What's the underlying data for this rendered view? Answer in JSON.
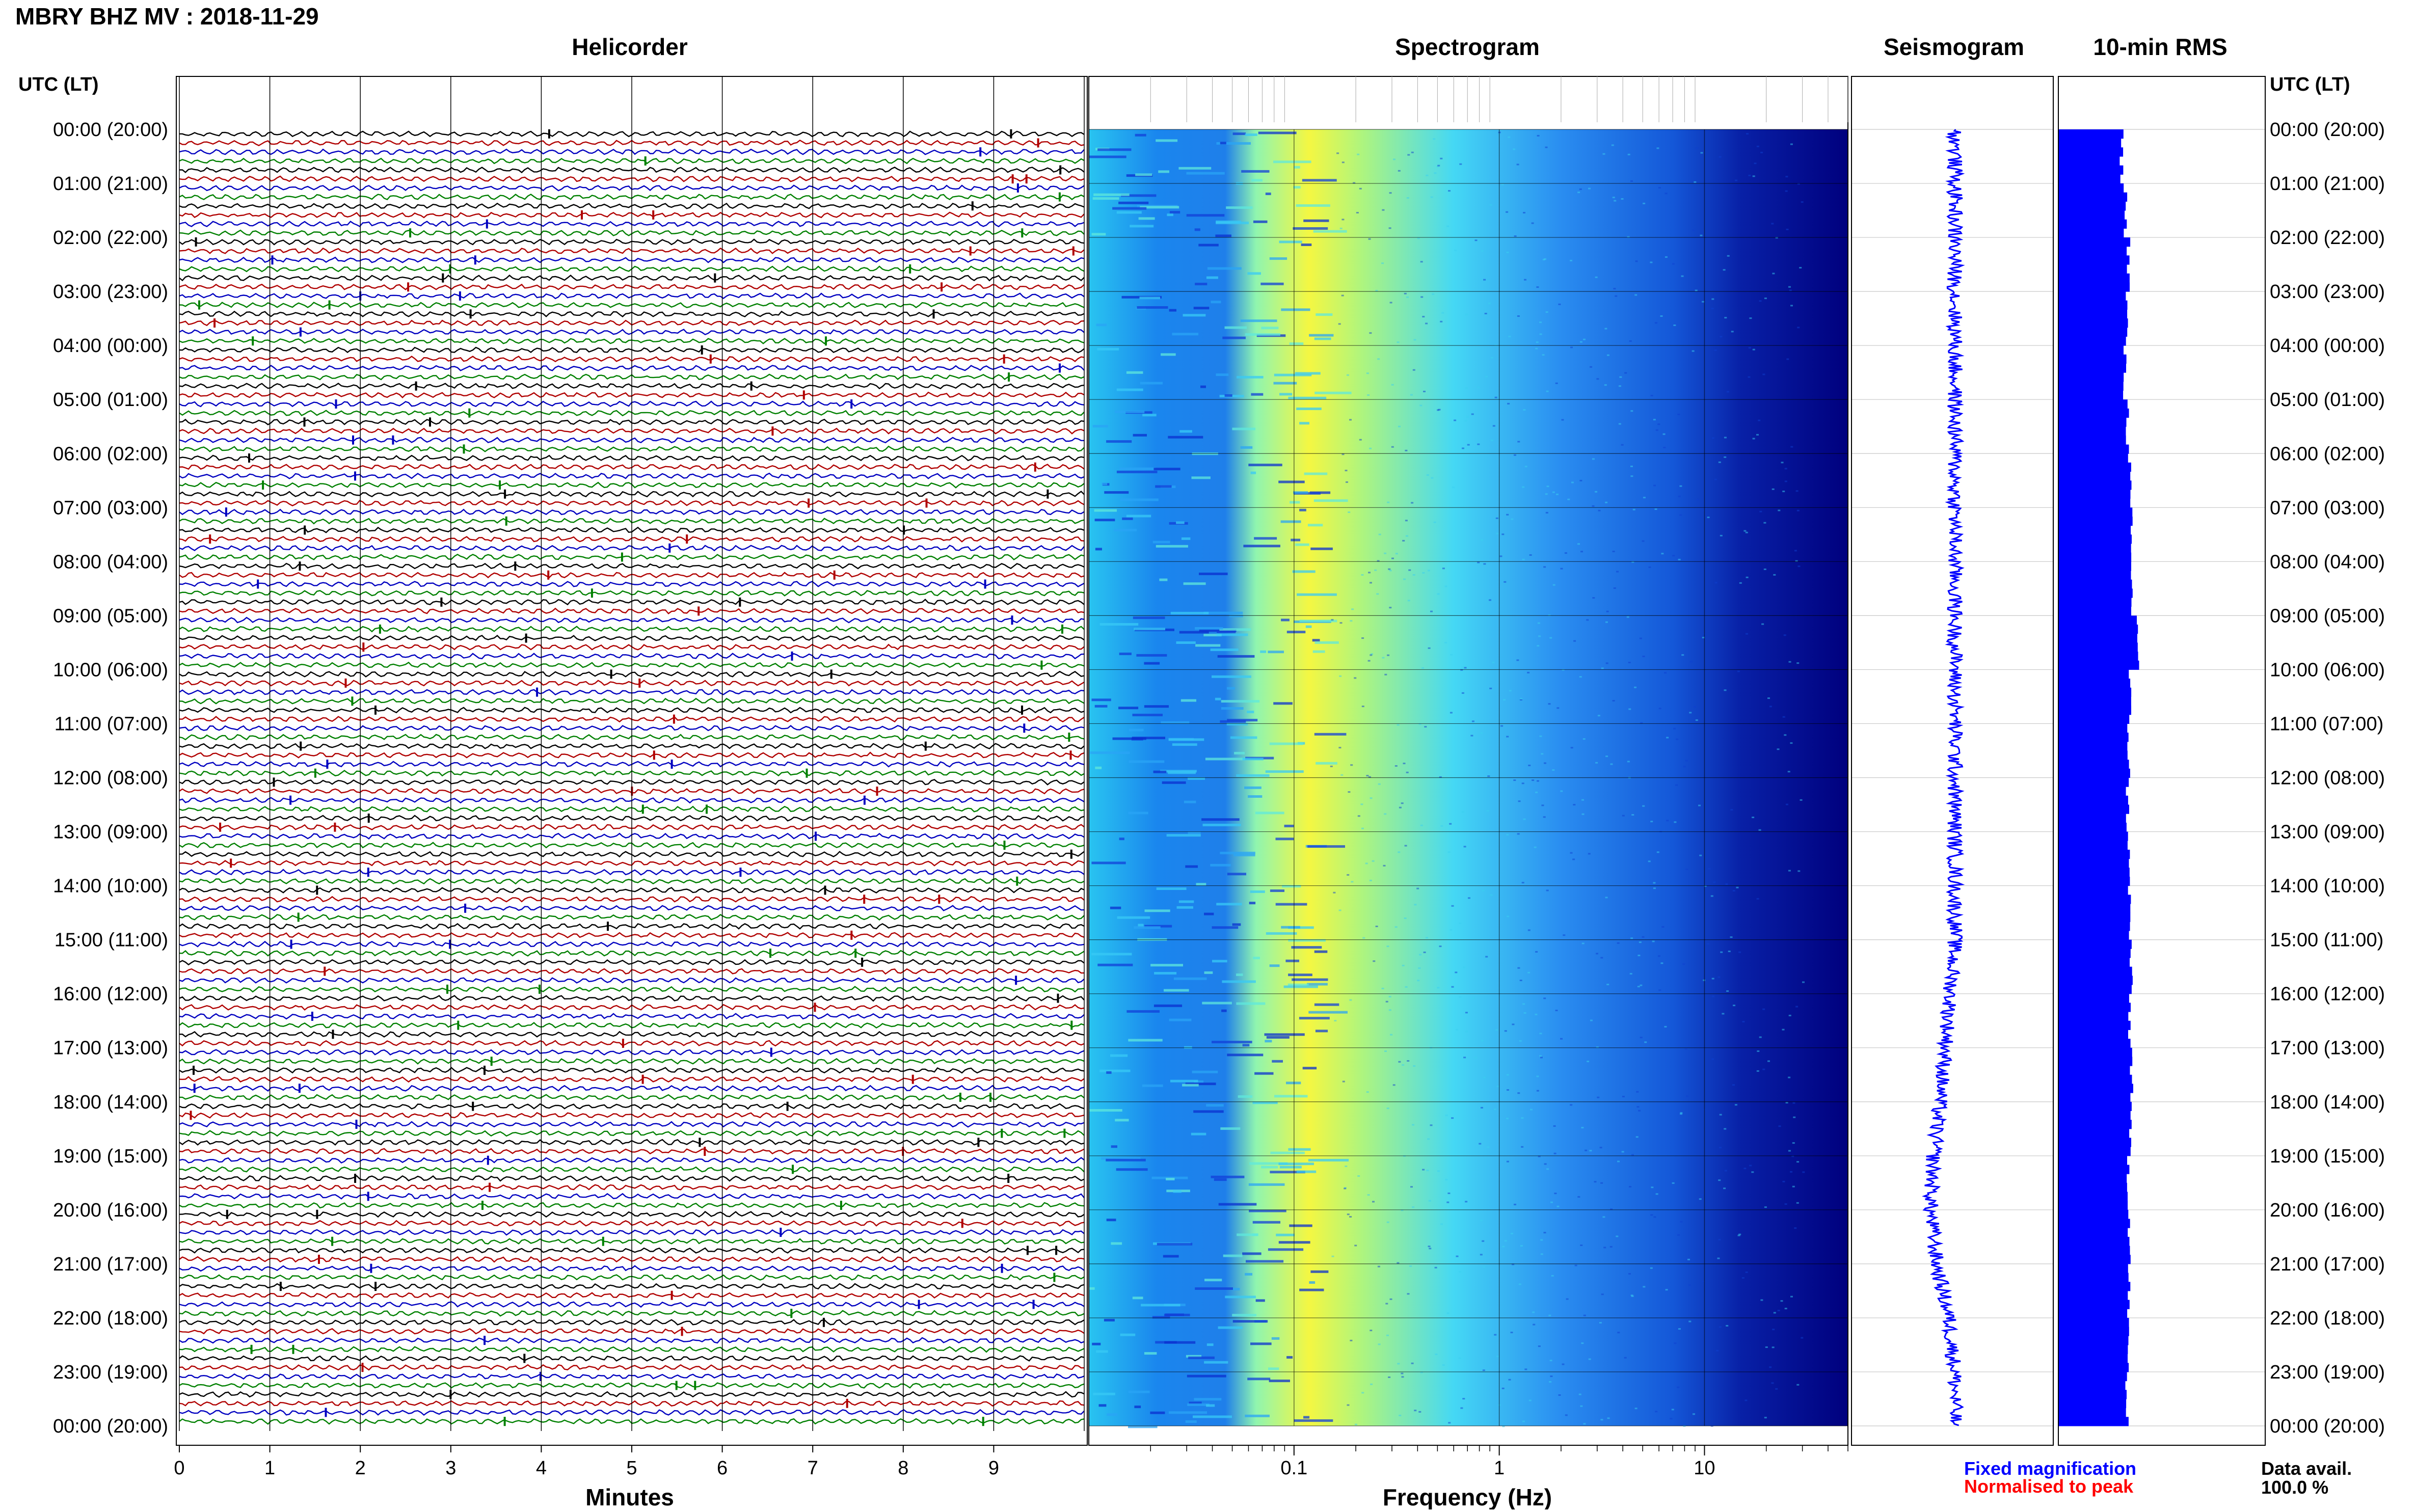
{
  "header": {
    "title": "MBRY BHZ MV : 2018-11-29",
    "utc_lt_left": "UTC (LT)",
    "utc_lt_right": "UTC (LT)"
  },
  "panels": {
    "helicorder": "Helicorder",
    "spectrogram": "Spectrogram",
    "seismogram": "Seismogram",
    "rms": "10-min RMS"
  },
  "time_labels": [
    "00:00 (20:00)",
    "01:00 (21:00)",
    "02:00 (22:00)",
    "03:00 (23:00)",
    "04:00 (00:00)",
    "05:00 (01:00)",
    "06:00 (02:00)",
    "07:00 (03:00)",
    "08:00 (04:00)",
    "09:00 (05:00)",
    "10:00 (06:00)",
    "11:00 (07:00)",
    "12:00 (08:00)",
    "13:00 (09:00)",
    "14:00 (10:00)",
    "15:00 (11:00)",
    "16:00 (12:00)",
    "17:00 (13:00)",
    "18:00 (14:00)",
    "19:00 (15:00)",
    "20:00 (16:00)",
    "21:00 (17:00)",
    "22:00 (18:00)",
    "23:00 (19:00)",
    "00:00 (20:00)"
  ],
  "helicorder_axis": {
    "label": "Minutes",
    "ticks": [
      "0",
      "1",
      "2",
      "3",
      "4",
      "5",
      "6",
      "7",
      "8",
      "9"
    ],
    "trace_colors": [
      "#000000",
      "#b00000",
      "#0000c0",
      "#008000"
    ]
  },
  "spectrogram_axis": {
    "label": "Frequency (Hz)",
    "ticks": [
      "0.1",
      "1",
      "10"
    ],
    "scale": "log",
    "range_hz": [
      0.01,
      50
    ]
  },
  "legend": {
    "fixed": "Fixed magnification",
    "fixed_color": "#0000ff",
    "normalised": "Normalised to peak",
    "normalised_color": "#ff0000",
    "data_avail_label": "Data avail.",
    "data_avail_value": "100.0 %"
  },
  "chart_data": [
    {
      "type": "line",
      "name": "Helicorder",
      "x_unit": "minutes",
      "xlim": [
        0,
        10
      ],
      "lines_per_hour": 6,
      "total_lines": 144,
      "note_colors_cycle": [
        "#000000",
        "#b00000",
        "#0000c0",
        "#008000"
      ]
    },
    {
      "type": "heatmap",
      "name": "Spectrogram",
      "x_scale": "log",
      "xlim": [
        0.01,
        50
      ],
      "peak_band_hz": [
        0.15,
        0.3
      ],
      "colormap": [
        "#00007a",
        "#0033cc",
        "#1f8fff",
        "#33ccff",
        "#7fffd0",
        "#ffff33"
      ]
    },
    {
      "type": "line",
      "name": "Seismogram",
      "hours": [
        0,
        3,
        6,
        9,
        12,
        15,
        17,
        19,
        20,
        21,
        22,
        23,
        24
      ],
      "offset": [
        0.0,
        0.0,
        0.0,
        0.0,
        0.0,
        0.0,
        -0.15,
        -0.35,
        -0.4,
        -0.3,
        -0.1,
        0.0,
        0.0
      ]
    },
    {
      "type": "bar",
      "name": "10-min RMS",
      "hours": [
        0,
        1,
        2,
        3,
        4,
        5,
        6,
        7,
        8,
        9,
        10,
        11,
        12,
        13,
        14,
        15,
        16,
        17,
        18,
        19,
        20,
        21,
        22,
        23
      ],
      "values": [
        0.62,
        0.66,
        0.69,
        0.67,
        0.65,
        0.68,
        0.7,
        0.71,
        0.72,
        0.78,
        0.7,
        0.69,
        0.68,
        0.69,
        0.7,
        0.71,
        0.7,
        0.72,
        0.7,
        0.69,
        0.7,
        0.69,
        0.68,
        0.67
      ]
    }
  ]
}
